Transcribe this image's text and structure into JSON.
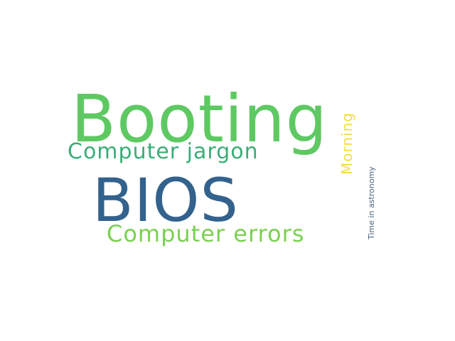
{
  "wordcloud": {
    "words": [
      {
        "text": "Booting",
        "color": "#5ec962"
      },
      {
        "text": "Computer jargon",
        "color": "#3aad77"
      },
      {
        "text": "BIOS",
        "color": "#33628d"
      },
      {
        "text": "Computer errors",
        "color": "#7ad151"
      },
      {
        "text": "Morning",
        "color": "#f2dd3d"
      },
      {
        "text": "Time in astronomy",
        "color": "#46627f"
      }
    ]
  }
}
